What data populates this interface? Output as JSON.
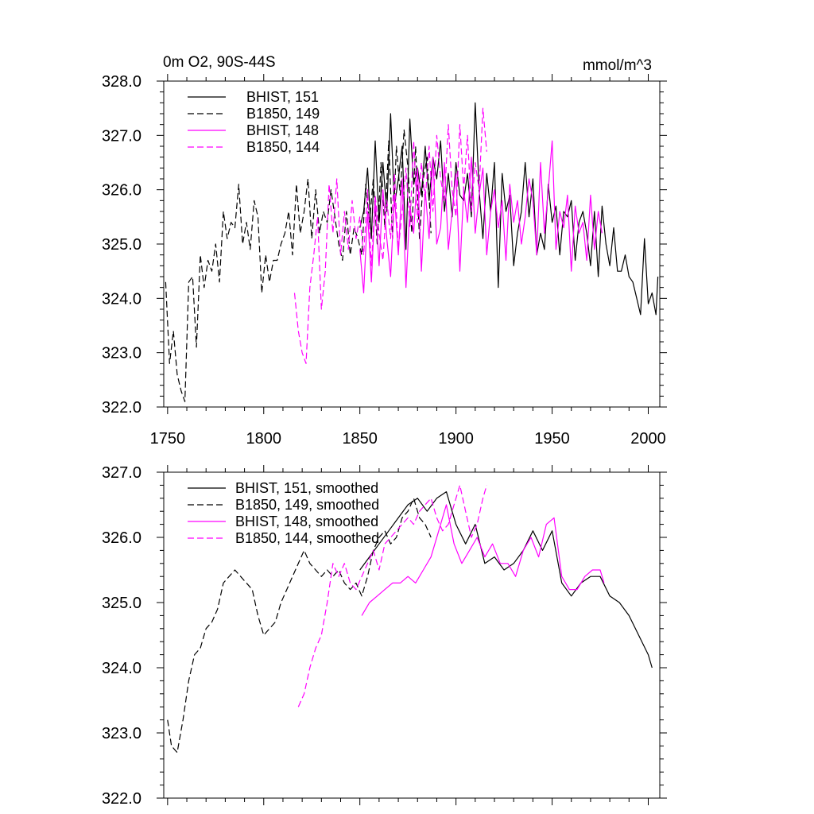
{
  "chart_data": [
    {
      "type": "line",
      "title_left": "0m O2, 90S-44S",
      "title_right": "mmol/m^3",
      "xlim": [
        1748,
        2006
      ],
      "ylim": [
        322.0,
        328.0
      ],
      "xticks": [
        "1750",
        "1800",
        "1850",
        "1900",
        "1950",
        "2000"
      ],
      "yticks": [
        "322.0",
        "323.0",
        "324.0",
        "325.0",
        "326.0",
        "327.0",
        "328.0"
      ],
      "series": [
        {
          "name": "BHIST, 151",
          "color": "#000000",
          "dash": "solid",
          "x": [
            1850,
            1852,
            1854,
            1856,
            1858,
            1860,
            1862,
            1864,
            1866,
            1868,
            1870,
            1872,
            1874,
            1876,
            1878,
            1880,
            1882,
            1884,
            1886,
            1888,
            1890,
            1892,
            1894,
            1896,
            1898,
            1900,
            1902,
            1904,
            1906,
            1908,
            1910,
            1912,
            1914,
            1916,
            1918,
            1920,
            1922,
            1924,
            1926,
            1928,
            1930,
            1932,
            1934,
            1936,
            1938,
            1940,
            1942,
            1944,
            1946,
            1948,
            1950,
            1952,
            1954,
            1956,
            1958,
            1960,
            1962,
            1964,
            1966,
            1968,
            1970,
            1972,
            1974,
            1976,
            1978,
            1980,
            1982,
            1984,
            1986,
            1988,
            1990,
            1992,
            1994,
            1996,
            1998,
            2000,
            2002,
            2004,
            2005
          ],
          "values": [
            325.3,
            325.6,
            326.4,
            325.1,
            326.9,
            325.4,
            326.5,
            325.6,
            327.4,
            325.7,
            326.2,
            326.8,
            324.9,
            327.3,
            326.1,
            326.4,
            325.9,
            326.8,
            325.8,
            326.6,
            326.2,
            326.9,
            325.6,
            326.3,
            325.5,
            326.5,
            325.9,
            325.8,
            326.3,
            325.5,
            327.6,
            326.0,
            325.1,
            326.3,
            325.6,
            326.5,
            324.2,
            326.3,
            325.6,
            325.9,
            324.6,
            325.2,
            325.6,
            326.5,
            325.5,
            326.2,
            324.8,
            325.2,
            324.9,
            326.1,
            325.4,
            325.7,
            324.8,
            325.6,
            325.5,
            325.8,
            324.7,
            325.4,
            325.6,
            325.2,
            324.6,
            325.6,
            324.4,
            325.7,
            325.0,
            324.6,
            325.3,
            324.5,
            324.5,
            324.8,
            324.4,
            324.3,
            324.0,
            323.7,
            325.1,
            323.9,
            324.1,
            323.7,
            324.4
          ]
        },
        {
          "name": "B1850, 149",
          "color": "#000000",
          "dash": "dashed",
          "x": [
            1749,
            1751,
            1753,
            1755,
            1757,
            1759,
            1761,
            1763,
            1765,
            1767,
            1769,
            1771,
            1773,
            1775,
            1777,
            1779,
            1781,
            1783,
            1785,
            1787,
            1789,
            1791,
            1793,
            1795,
            1797,
            1799,
            1801,
            1803,
            1805,
            1807,
            1809,
            1811,
            1813,
            1815,
            1817,
            1819,
            1821,
            1823,
            1825,
            1827,
            1829,
            1831,
            1833,
            1835,
            1837,
            1839,
            1841,
            1843,
            1845,
            1847,
            1849,
            1851,
            1853,
            1855,
            1857,
            1859,
            1861,
            1863,
            1865,
            1867,
            1869,
            1871,
            1873,
            1875,
            1877,
            1879,
            1881,
            1883,
            1885,
            1887
          ],
          "values": [
            324.3,
            322.8,
            323.4,
            322.6,
            322.3,
            322.1,
            324.3,
            324.4,
            323.1,
            324.8,
            324.2,
            324.7,
            324.5,
            325.0,
            324.3,
            325.6,
            325.1,
            325.4,
            325.3,
            326.1,
            325.0,
            325.4,
            324.9,
            325.8,
            325.5,
            324.1,
            324.8,
            324.3,
            324.7,
            324.7,
            325.0,
            325.2,
            325.6,
            324.8,
            326.1,
            325.2,
            325.6,
            326.2,
            325.1,
            326.0,
            325.2,
            325.6,
            325.4,
            326.0,
            325.5,
            325.0,
            324.7,
            325.6,
            324.8,
            325.3,
            325.1,
            324.8,
            326.1,
            325.4,
            326.2,
            325.0,
            326.5,
            325.3,
            326.9,
            325.1,
            326.8,
            325.9,
            327.1,
            326.4,
            325.2,
            326.8,
            325.1,
            326.2,
            326.6,
            325.2
          ]
        },
        {
          "name": "BHIST, 148",
          "color": "#FF00FF",
          "dash": "solid",
          "x": [
            1850,
            1852,
            1854,
            1856,
            1858,
            1860,
            1862,
            1864,
            1866,
            1868,
            1870,
            1872,
            1874,
            1876,
            1878,
            1880,
            1882,
            1884,
            1886,
            1888,
            1890,
            1892,
            1894,
            1896,
            1898,
            1900,
            1902,
            1904,
            1906,
            1908,
            1910,
            1912,
            1914,
            1916,
            1918,
            1920,
            1922,
            1924,
            1926,
            1928,
            1930,
            1932,
            1934,
            1936,
            1938,
            1940,
            1942,
            1944,
            1946,
            1948,
            1950,
            1952,
            1954,
            1956,
            1958,
            1960,
            1962,
            1964,
            1966,
            1968,
            1970,
            1972,
            1974,
            1976
          ],
          "values": [
            324.9,
            324.1,
            325.6,
            324.3,
            325.8,
            324.6,
            326.0,
            325.1,
            324.4,
            325.9,
            324.8,
            326.2,
            324.2,
            325.7,
            325.2,
            326.4,
            324.5,
            326.0,
            325.1,
            326.6,
            325.0,
            325.3,
            326.5,
            324.9,
            325.6,
            326.3,
            324.5,
            326.0,
            325.4,
            326.6,
            325.2,
            325.9,
            326.4,
            324.8,
            325.6,
            326.0,
            325.3,
            325.8,
            324.7,
            326.1,
            325.4,
            325.8,
            325.0,
            325.5,
            326.2,
            325.8,
            324.8,
            326.5,
            325.2,
            326.0,
            326.9,
            324.9,
            325.6,
            325.3,
            325.9,
            324.5,
            325.7,
            325.2,
            325.4,
            324.7,
            325.9,
            324.9,
            325.6,
            325.2
          ]
        },
        {
          "name": "B1850, 144",
          "color": "#FF00FF",
          "dash": "dashed",
          "x": [
            1816,
            1818,
            1820,
            1822,
            1824,
            1826,
            1828,
            1830,
            1832,
            1834,
            1836,
            1838,
            1840,
            1842,
            1844,
            1846,
            1848,
            1850,
            1852,
            1854,
            1856,
            1858,
            1860,
            1862,
            1864,
            1866,
            1868,
            1870,
            1872,
            1874,
            1876,
            1878,
            1880,
            1882,
            1884,
            1886,
            1888,
            1890,
            1892,
            1894,
            1896,
            1898,
            1900,
            1902,
            1904,
            1906,
            1908,
            1910,
            1912,
            1914,
            1916
          ],
          "values": [
            324.1,
            323.4,
            323.0,
            322.8,
            324.2,
            324.8,
            325.5,
            323.8,
            324.5,
            326.1,
            325.2,
            326.2,
            324.8,
            325.6,
            324.9,
            325.8,
            325.1,
            325.5,
            324.8,
            326.0,
            324.6,
            325.9,
            325.2,
            324.7,
            325.8,
            325.1,
            326.3,
            324.9,
            325.6,
            326.4,
            325.3,
            326.9,
            325.4,
            326.5,
            325.8,
            326.8,
            325.6,
            327.0,
            326.2,
            325.8,
            327.2,
            326.0,
            325.5,
            327.2,
            326.0,
            327.0,
            325.6,
            326.5,
            326.0,
            327.5,
            326.7
          ]
        }
      ]
    },
    {
      "type": "line",
      "xlim": [
        1748,
        2006
      ],
      "ylim": [
        322.0,
        327.0
      ],
      "yticks": [
        "322.0",
        "323.0",
        "324.0",
        "325.0",
        "326.0",
        "327.0"
      ],
      "series": [
        {
          "name": "BHIST, 151, smoothed",
          "color": "#000000",
          "dash": "solid",
          "x": [
            1850,
            1855,
            1860,
            1865,
            1870,
            1875,
            1880,
            1885,
            1890,
            1895,
            1900,
            1905,
            1910,
            1915,
            1920,
            1925,
            1930,
            1935,
            1940,
            1945,
            1950,
            1955,
            1960,
            1965,
            1970,
            1975,
            1980,
            1985,
            1990,
            1995,
            2000,
            2002
          ],
          "values": [
            325.5,
            325.7,
            325.9,
            326.1,
            326.3,
            326.5,
            326.6,
            326.4,
            326.6,
            326.7,
            326.2,
            325.9,
            326.2,
            325.6,
            325.7,
            325.5,
            325.6,
            325.8,
            326.1,
            325.8,
            326.1,
            325.3,
            325.1,
            325.3,
            325.4,
            325.4,
            325.1,
            325.0,
            324.8,
            324.5,
            324.2,
            324.0
          ]
        },
        {
          "name": "B1850, 149, smoothed",
          "color": "#000000",
          "dash": "dashed",
          "x": [
            1750,
            1752,
            1755,
            1758,
            1761,
            1764,
            1767,
            1770,
            1773,
            1776,
            1779,
            1782,
            1785,
            1788,
            1791,
            1794,
            1797,
            1800,
            1803,
            1806,
            1809,
            1812,
            1815,
            1818,
            1821,
            1824,
            1827,
            1830,
            1833,
            1836,
            1839,
            1842,
            1845,
            1848,
            1851,
            1854,
            1857,
            1860,
            1863,
            1866,
            1869,
            1872,
            1875,
            1878,
            1881,
            1884,
            1887
          ],
          "values": [
            323.2,
            322.8,
            322.7,
            323.2,
            323.8,
            324.2,
            324.3,
            324.6,
            324.7,
            324.9,
            325.3,
            325.4,
            325.5,
            325.4,
            325.3,
            325.2,
            324.8,
            324.5,
            324.6,
            324.7,
            325.0,
            325.2,
            325.4,
            325.6,
            325.8,
            325.6,
            325.5,
            325.4,
            325.5,
            325.4,
            325.5,
            325.3,
            325.2,
            325.3,
            325.1,
            325.4,
            325.8,
            326.0,
            326.1,
            325.9,
            326.0,
            326.3,
            326.4,
            326.6,
            326.3,
            326.2,
            326.0
          ]
        },
        {
          "name": "BHIST, 148, smoothed",
          "color": "#FF00FF",
          "dash": "solid",
          "x": [
            1851,
            1855,
            1859,
            1863,
            1867,
            1871,
            1875,
            1879,
            1883,
            1887,
            1891,
            1895,
            1899,
            1903,
            1907,
            1911,
            1915,
            1919,
            1923,
            1927,
            1931,
            1935,
            1939,
            1943,
            1947,
            1951,
            1955,
            1959,
            1963,
            1967,
            1971,
            1975,
            1977
          ],
          "values": [
            324.8,
            325.0,
            325.1,
            325.2,
            325.3,
            325.3,
            325.4,
            325.3,
            325.5,
            325.7,
            326.1,
            326.5,
            325.9,
            325.6,
            325.8,
            326.0,
            325.7,
            325.9,
            325.6,
            325.6,
            325.4,
            325.8,
            326.0,
            325.7,
            326.2,
            326.3,
            325.4,
            325.2,
            325.2,
            325.4,
            325.5,
            325.5,
            325.3
          ]
        },
        {
          "name": "B1850, 144, smoothed",
          "color": "#FF00FF",
          "dash": "dashed",
          "x": [
            1818,
            1821,
            1824,
            1827,
            1830,
            1833,
            1836,
            1839,
            1842,
            1845,
            1848,
            1851,
            1854,
            1857,
            1860,
            1863,
            1866,
            1869,
            1872,
            1875,
            1878,
            1881,
            1884,
            1887,
            1890,
            1893,
            1896,
            1899,
            1902,
            1905,
            1908,
            1911,
            1914,
            1916
          ],
          "values": [
            323.4,
            323.6,
            324.0,
            324.3,
            324.5,
            325.0,
            325.6,
            325.4,
            325.6,
            325.3,
            325.2,
            325.4,
            325.6,
            325.8,
            325.5,
            325.9,
            326.0,
            326.1,
            326.2,
            326.3,
            326.2,
            326.4,
            326.5,
            326.6,
            326.3,
            326.1,
            326.2,
            326.5,
            326.8,
            326.4,
            326.0,
            326.2,
            326.6,
            326.8
          ]
        }
      ]
    }
  ]
}
